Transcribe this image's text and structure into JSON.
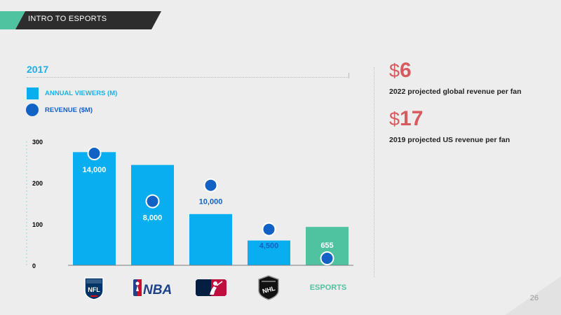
{
  "header": {
    "title": "INTRO TO ESPORTS"
  },
  "legend": {
    "square_label": "ANNUAL VIEWERS (M)",
    "dot_label": "REVENUE ($M)"
  },
  "stats": [
    {
      "symbol": "$",
      "number": "6",
      "label": "2022 projected global revenue per fan"
    },
    {
      "symbol": "$",
      "number": "17",
      "label": "2019 projected US revenue per fan"
    }
  ],
  "logos": {
    "nfl": "NFL",
    "nba": "NBA",
    "nhl": "NHL",
    "esports": "ESPORTS"
  },
  "page_number": "26",
  "colors": {
    "viewers": "#08aef0",
    "esports": "#4fc2a0",
    "revenue": "#1262c6",
    "accent": "#d85a5e"
  },
  "chart_data": {
    "type": "bar",
    "title": "2017",
    "categories": [
      "NFL",
      "NBA",
      "MLB",
      "NHL",
      "ESPORTS"
    ],
    "series": [
      {
        "name": "ANNUAL VIEWERS (M)",
        "type": "bar",
        "values": [
          274,
          243,
          124,
          60,
          93
        ]
      },
      {
        "name": "REVENUE ($M)",
        "type": "dot",
        "values": [
          14000,
          8000,
          10000,
          4500,
          655
        ],
        "labels": [
          "14,000",
          "8,000",
          "10,000",
          "4,500",
          "655"
        ]
      }
    ],
    "yticks": [
      0,
      100,
      200,
      300
    ],
    "ylim": [
      0,
      300
    ],
    "revenue_ylim": [
      0,
      14000
    ]
  }
}
